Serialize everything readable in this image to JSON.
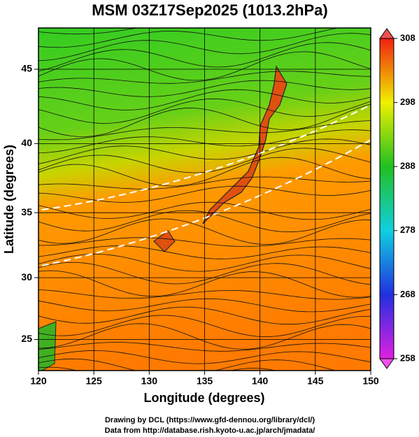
{
  "chart_data": {
    "type": "map",
    "title": "MSM 03Z17Sep2025 (1013.2hPa)",
    "x_label": "Longitude (degrees)",
    "y_label": "Latitude  (degrees)",
    "xlim": [
      120,
      150
    ],
    "xticks": [
      120,
      125,
      130,
      135,
      140,
      145,
      150
    ],
    "ylim": [
      22.4,
      47.6
    ],
    "yticks": [
      25,
      30,
      35,
      40,
      45
    ],
    "projection": "mercator",
    "grid": true,
    "colorbar": {
      "lim": [
        258,
        308
      ],
      "ticks": [
        258,
        268,
        278,
        288,
        298,
        308
      ]
    },
    "footer": [
      "Drawing by DCL (https://www.gfd-dennou.org/library/dcl/)",
      "Data from http://database.rish.kyoto-u.ac.jp/arch/jmadata/"
    ]
  }
}
